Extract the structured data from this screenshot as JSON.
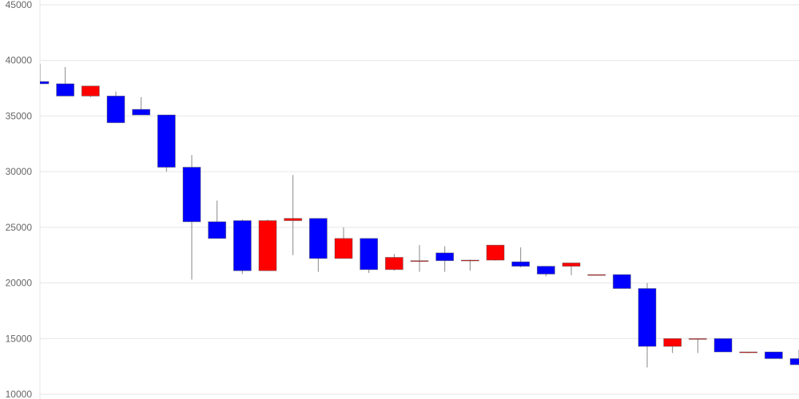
{
  "chart_data": {
    "type": "candlestick",
    "title": "",
    "xlabel": "",
    "ylabel": "",
    "ylim": [
      10000,
      45000
    ],
    "yticks": [
      "10000",
      "15000",
      "20000",
      "25000",
      "30000",
      "35000",
      "40000",
      "45000"
    ],
    "grid": true,
    "colors": {
      "up": "#ff0000",
      "down": "#0000ff",
      "wick": "#888888",
      "grid": "#e6e6e6",
      "tick": "#666666"
    },
    "candles": [
      {
        "open": 38100,
        "high": 39700,
        "low": 37900,
        "close": 37900
      },
      {
        "open": 37900,
        "high": 39400,
        "low": 36800,
        "close": 36800
      },
      {
        "open": 36800,
        "high": 37700,
        "low": 36700,
        "close": 37700
      },
      {
        "open": 36800,
        "high": 37200,
        "low": 34400,
        "close": 34400
      },
      {
        "open": 35600,
        "high": 36700,
        "low": 35100,
        "close": 35100
      },
      {
        "open": 35100,
        "high": 35100,
        "low": 30000,
        "close": 30400
      },
      {
        "open": 30400,
        "high": 31500,
        "low": 20300,
        "close": 25500
      },
      {
        "open": 25500,
        "high": 27400,
        "low": 24000,
        "close": 24000
      },
      {
        "open": 25600,
        "high": 25700,
        "low": 20800,
        "close": 21100
      },
      {
        "open": 21100,
        "high": 25700,
        "low": 21100,
        "close": 25600
      },
      {
        "open": 25600,
        "high": 29700,
        "low": 22500,
        "close": 25800
      },
      {
        "open": 25800,
        "high": 25800,
        "low": 21000,
        "close": 22200
      },
      {
        "open": 22200,
        "high": 25000,
        "low": 22200,
        "close": 24000
      },
      {
        "open": 24000,
        "high": 24000,
        "low": 20900,
        "close": 21200
      },
      {
        "open": 21200,
        "high": 22600,
        "low": 21100,
        "close": 22300
      },
      {
        "open": 21950,
        "high": 23400,
        "low": 21000,
        "close": 22000
      },
      {
        "open": 22700,
        "high": 23300,
        "low": 21000,
        "close": 22000
      },
      {
        "open": 22000,
        "high": 22100,
        "low": 21100,
        "close": 22050
      },
      {
        "open": 22050,
        "high": 23400,
        "low": 22000,
        "close": 23400
      },
      {
        "open": 21900,
        "high": 23200,
        "low": 21400,
        "close": 21500
      },
      {
        "open": 21500,
        "high": 21500,
        "low": 20600,
        "close": 20800
      },
      {
        "open": 21500,
        "high": 21800,
        "low": 20700,
        "close": 21800
      },
      {
        "open": 20750,
        "high": 20750,
        "low": 20750,
        "close": 20750
      },
      {
        "open": 20750,
        "high": 20750,
        "low": 19500,
        "close": 19500
      },
      {
        "open": 19500,
        "high": 20000,
        "low": 12400,
        "close": 14300
      },
      {
        "open": 14300,
        "high": 15000,
        "low": 13700,
        "close": 15000
      },
      {
        "open": 15000,
        "high": 15000,
        "low": 13700,
        "close": 15000
      },
      {
        "open": 15000,
        "high": 15000,
        "low": 13800,
        "close": 13800
      },
      {
        "open": 13800,
        "high": 13800,
        "low": 13700,
        "close": 13800
      },
      {
        "open": 13800,
        "high": 13800,
        "low": 13200,
        "close": 13200
      },
      {
        "open": 13200,
        "high": 14000,
        "low": 12650,
        "close": 12650
      }
    ]
  }
}
